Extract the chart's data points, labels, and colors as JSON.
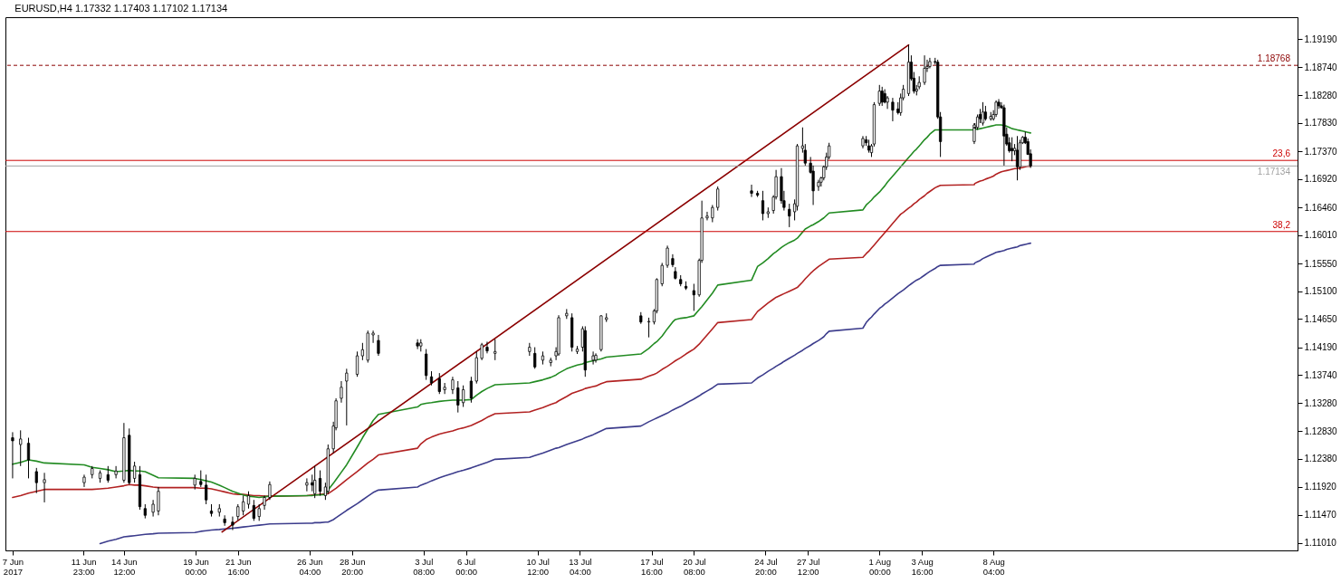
{
  "chart_data": {
    "type": "candlestick",
    "title": "EURUSD,H4  1.17332 1.17403 1.17102 1.17134",
    "xlim": [
      "2017-06-07T08:00",
      "2017-08-27T00:00"
    ],
    "ylim": [
      1.1089,
      1.1955
    ],
    "xticks": [
      {
        "value": "2017-06-07T12:00",
        "label": "7 Jun 2017"
      },
      {
        "value": "2017-06-11T23:00",
        "label": "11 Jun 23:00"
      },
      {
        "value": "2017-06-14T12:00",
        "label": "14 Jun 12:00"
      },
      {
        "value": "2017-06-19T00:00",
        "label": "19 Jun 00:00"
      },
      {
        "value": "2017-06-21T16:00",
        "label": "21 Jun 16:00"
      },
      {
        "value": "2017-06-26T04:00",
        "label": "26 Jun 04:00"
      },
      {
        "value": "2017-06-28T20:00",
        "label": "28 Jun 20:00"
      },
      {
        "value": "2017-07-03T08:00",
        "label": "3 Jul 08:00"
      },
      {
        "value": "2017-07-06T00:00",
        "label": "6 Jul 00:00"
      },
      {
        "value": "2017-07-10T12:00",
        "label": "10 Jul 12:00"
      },
      {
        "value": "2017-07-13T04:00",
        "label": "13 Jul 04:00"
      },
      {
        "value": "2017-07-17T16:00",
        "label": "17 Jul 16:00"
      },
      {
        "value": "2017-07-20T08:00",
        "label": "20 Jul 08:00"
      },
      {
        "value": "2017-07-24T20:00",
        "label": "24 Jul 20:00"
      },
      {
        "value": "2017-07-27T12:00",
        "label": "27 Jul 12:00"
      },
      {
        "value": "2017-08-01T00:00",
        "label": "1 Aug 00:00"
      },
      {
        "value": "2017-08-03T16:00",
        "label": "3 Aug 16:00"
      },
      {
        "value": "2017-08-08T04:00",
        "label": "8 Aug 04:00"
      }
    ],
    "yticks": [
      {
        "value": 1.1101,
        "label": "1.11010"
      },
      {
        "value": 1.1147,
        "label": "1.11470"
      },
      {
        "value": 1.1192,
        "label": "1.11920"
      },
      {
        "value": 1.1238,
        "label": "1.12380"
      },
      {
        "value": 1.1283,
        "label": "1.12830"
      },
      {
        "value": 1.1328,
        "label": "1.13280"
      },
      {
        "value": 1.1374,
        "label": "1.13740"
      },
      {
        "value": 1.1419,
        "label": "1.14190"
      },
      {
        "value": 1.1465,
        "label": "1.14650"
      },
      {
        "value": 1.151,
        "label": "1.15100"
      },
      {
        "value": 1.1555,
        "label": "1.15550"
      },
      {
        "value": 1.1601,
        "label": "1.16010"
      },
      {
        "value": 1.1646,
        "label": "1.16460"
      },
      {
        "value": 1.1692,
        "label": "1.16920"
      },
      {
        "value": 1.1737,
        "label": "1.17370"
      },
      {
        "value": 1.1783,
        "label": "1.17830"
      },
      {
        "value": 1.1828,
        "label": "1.18280"
      },
      {
        "value": 1.1874,
        "label": "1.18740"
      },
      {
        "value": 1.1919,
        "label": "1.19190"
      }
    ],
    "ref_lines": [
      {
        "axis": "y",
        "value": 1.18768,
        "label": "1.18768",
        "color": "#8b0000",
        "line_style": "dashed"
      },
      {
        "axis": "y",
        "value": 1.17224,
        "color": "#cc0000"
      },
      {
        "axis": "y",
        "value": 1.16069,
        "color": "#cc0000"
      },
      {
        "axis": "y",
        "value": 1.17134,
        "label": "1.17134",
        "color": "#a0a0a0"
      }
    ],
    "annotations": [
      {
        "text": "23,6",
        "y": 1.17224
      },
      {
        "text": "38,2",
        "y": 1.16069
      }
    ],
    "x": [
      "2017-06-07T12:00",
      "2017-06-08T00:00",
      "2017-06-08T12:00",
      "2017-06-09T00:00",
      "2017-06-09T12:00",
      "2017-06-12T00:00",
      "2017-06-12T12:00",
      "2017-06-13T00:00",
      "2017-06-13T12:00",
      "2017-06-14T00:00",
      "2017-06-14T12:00",
      "2017-06-14T20:00",
      "2017-06-15T04:00",
      "2017-06-15T12:00",
      "2017-06-15T20:00",
      "2017-06-16T08:00",
      "2017-06-16T16:00",
      "2017-06-18T23:00",
      "2017-06-19T08:00",
      "2017-06-19T16:00",
      "2017-06-20T00:00",
      "2017-06-20T12:00",
      "2017-06-20T20:00",
      "2017-06-21T08:00",
      "2017-06-21T16:00",
      "2017-06-22T00:00",
      "2017-06-22T08:00",
      "2017-06-22T16:00",
      "2017-06-23T00:00",
      "2017-06-23T08:00",
      "2017-06-23T16:00",
      "2017-06-26T00:00",
      "2017-06-26T08:00",
      "2017-06-26T12:00",
      "2017-06-26T20:00",
      "2017-06-27T04:00",
      "2017-06-27T08:00",
      "2017-06-27T16:00",
      "2017-06-27T20:00",
      "2017-06-28T04:00",
      "2017-06-28T12:00",
      "2017-06-29T04:00",
      "2017-06-29T12:00",
      "2017-06-29T20:00",
      "2017-06-30T04:00",
      "2017-06-30T12:00",
      "2017-07-02T23:00",
      "2017-07-03T04:00",
      "2017-07-03T12:00",
      "2017-07-03T20:00",
      "2017-07-04T08:00",
      "2017-07-04T16:00",
      "2017-07-05T04:00",
      "2017-07-05T12:00",
      "2017-07-05T20:00",
      "2017-07-06T08:00",
      "2017-07-06T16:00",
      "2017-07-07T00:00",
      "2017-07-07T08:00",
      "2017-07-07T20:00",
      "2017-07-10T00:00",
      "2017-07-10T08:00",
      "2017-07-10T20:00",
      "2017-07-11T08:00",
      "2017-07-11T16:00",
      "2017-07-11T20:00",
      "2017-07-12T08:00",
      "2017-07-12T16:00",
      "2017-07-13T00:00",
      "2017-07-13T08:00",
      "2017-07-13T12:00",
      "2017-07-14T00:00",
      "2017-07-14T04:00",
      "2017-07-14T12:00",
      "2017-07-14T20:00",
      "2017-07-17T00:00",
      "2017-07-17T12:00",
      "2017-07-17T20:00",
      "2017-07-18T00:00",
      "2017-07-18T08:00",
      "2017-07-18T16:00",
      "2017-07-19T00:00",
      "2017-07-19T04:00",
      "2017-07-19T12:00",
      "2017-07-19T20:00",
      "2017-07-20T08:00",
      "2017-07-20T16:00",
      "2017-07-20T20:00",
      "2017-07-21T04:00",
      "2017-07-21T12:00",
      "2017-07-21T20:00",
      "2017-07-23T23:00",
      "2017-07-24T08:00",
      "2017-07-24T16:00",
      "2017-07-25T00:00",
      "2017-07-25T08:00",
      "2017-07-25T12:00",
      "2017-07-25T20:00",
      "2017-07-26T00:00",
      "2017-07-26T08:00",
      "2017-07-26T16:00",
      "2017-07-26T20:00",
      "2017-07-27T04:00",
      "2017-07-27T08:00",
      "2017-07-27T16:00",
      "2017-07-27T20:00",
      "2017-07-28T04:00",
      "2017-07-28T08:00",
      "2017-07-28T12:00",
      "2017-07-28T16:00",
      "2017-07-28T20:00",
      "2017-07-30T23:00",
      "2017-07-31T04:00",
      "2017-07-31T08:00",
      "2017-07-31T12:00",
      "2017-07-31T16:00",
      "2017-08-01T00:00",
      "2017-08-01T04:00",
      "2017-08-01T08:00",
      "2017-08-01T12:00",
      "2017-08-01T20:00",
      "2017-08-02T04:00",
      "2017-08-02T08:00",
      "2017-08-02T12:00",
      "2017-08-02T20:00",
      "2017-08-03T00:00",
      "2017-08-03T04:00",
      "2017-08-03T08:00",
      "2017-08-03T12:00",
      "2017-08-03T20:00",
      "2017-08-04T00:00",
      "2017-08-04T04:00",
      "2017-08-04T12:00",
      "2017-08-04T16:00",
      "2017-08-04T20:00",
      "2017-08-06T23:00",
      "2017-08-07T00:00",
      "2017-08-07T04:00",
      "2017-08-07T08:00",
      "2017-08-07T12:00",
      "2017-08-07T16:00",
      "2017-08-08T00:00",
      "2017-08-08T04:00",
      "2017-08-08T08:00",
      "2017-08-08T12:00",
      "2017-08-08T16:00",
      "2017-08-08T20:00",
      "2017-08-09T00:00",
      "2017-08-09T04:00",
      "2017-08-09T08:00",
      "2017-08-09T12:00",
      "2017-08-09T16:00",
      "2017-08-09T20:00",
      "2017-08-10T00:00",
      "2017-08-10T04:00",
      "2017-08-10T08:00",
      "2017-08-10T12:00"
    ],
    "series": [
      {
        "type": "line",
        "color": "#3c3c8c",
        "values": [
          null,
          null,
          null,
          null,
          null,
          null,
          null,
          1.11,
          1.1104,
          1.1107,
          1.1111,
          1.1112,
          1.1113,
          1.1114,
          1.1115,
          1.1116,
          1.1117,
          1.1118,
          1.112,
          1.1121,
          1.1122,
          1.1123,
          1.1124,
          1.1125,
          1.1126,
          1.1127,
          1.1128,
          1.1129,
          1.113,
          1.1131,
          1.1132,
          1.1133,
          1.1133,
          1.1134,
          1.1134,
          1.1135,
          1.1135,
          1.1139,
          1.1142,
          1.1148,
          1.1154,
          1.1165,
          1.1171,
          1.1177,
          1.1183,
          1.1187,
          1.1192,
          1.1195,
          1.1198,
          1.1202,
          1.1207,
          1.121,
          1.1214,
          1.1217,
          1.1219,
          1.1223,
          1.1226,
          1.1229,
          1.1232,
          1.1237,
          1.124,
          1.1243,
          1.1247,
          1.1252,
          1.1255,
          1.1256,
          1.1261,
          1.1264,
          1.1267,
          1.127,
          1.1272,
          1.1277,
          1.1279,
          1.1283,
          1.1287,
          1.1291,
          1.1298,
          1.1302,
          1.1304,
          1.1308,
          1.1312,
          1.1317,
          1.1319,
          1.1323,
          1.1328,
          1.1335,
          1.134,
          1.1343,
          1.1348,
          1.1353,
          1.1359,
          1.1361,
          1.1369,
          1.1374,
          1.138,
          1.1385,
          1.1388,
          1.1393,
          1.1396,
          1.1401,
          1.1406,
          1.1409,
          1.1414,
          1.1417,
          1.1422,
          1.1425,
          1.143,
          1.1433,
          1.1436,
          1.1441,
          1.1445,
          1.145,
          1.1459,
          1.1464,
          1.1468,
          1.1473,
          1.1482,
          1.1485,
          1.1489,
          1.1492,
          1.1499,
          1.1506,
          1.1509,
          1.1512,
          1.1519,
          1.1522,
          1.1525,
          1.1528,
          1.153,
          1.1536,
          1.1539,
          1.1542,
          1.1547,
          1.155,
          1.1552,
          1.1554,
          1.1556,
          1.1558,
          1.156,
          1.1563,
          1.1565,
          1.1569,
          1.1571,
          1.1573,
          1.1574,
          1.1575,
          1.1576,
          1.1578,
          1.1579,
          1.158,
          1.1581,
          1.1582,
          1.1584,
          1.1585,
          1.1586,
          1.1587,
          1.1588
        ]
      },
      {
        "type": "line",
        "color": "#b22222",
        "values": [
          1.1175,
          1.1178,
          1.1182,
          1.1185,
          1.1188,
          1.1188,
          1.1188,
          1.1189,
          1.119,
          1.1192,
          1.1194,
          1.1196,
          1.1195,
          1.1195,
          1.1194,
          1.1192,
          1.1191,
          1.1191,
          1.119,
          1.119,
          1.1189,
          1.1186,
          1.1184,
          1.1181,
          1.118,
          1.118,
          1.1179,
          1.1178,
          1.1178,
          1.1177,
          1.1177,
          1.1178,
          1.1179,
          1.1179,
          1.118,
          1.1181,
          1.1181,
          1.1187,
          1.119,
          1.1197,
          1.1204,
          1.1217,
          1.1224,
          1.1231,
          1.1237,
          1.1244,
          1.1255,
          1.1262,
          1.1269,
          1.1273,
          1.1278,
          1.128,
          1.1283,
          1.1286,
          1.1288,
          1.1292,
          1.1296,
          1.13,
          1.1305,
          1.1311,
          1.1314,
          1.1317,
          1.1321,
          1.1326,
          1.1329,
          1.1332,
          1.1339,
          1.1344,
          1.1347,
          1.135,
          1.1352,
          1.1355,
          1.1356,
          1.136,
          1.1363,
          1.1367,
          1.1372,
          1.1375,
          1.1377,
          1.1383,
          1.1388,
          1.1394,
          1.1397,
          1.1402,
          1.1408,
          1.1416,
          1.1424,
          1.1429,
          1.1439,
          1.1449,
          1.1459,
          1.1464,
          1.1477,
          1.1484,
          1.1491,
          1.1497,
          1.15,
          1.1504,
          1.1506,
          1.151,
          1.1514,
          1.1516,
          1.1525,
          1.153,
          1.1539,
          1.1543,
          1.155,
          1.1553,
          1.1556,
          1.1559,
          1.1562,
          1.1565,
          1.1571,
          1.1575,
          1.158,
          1.1585,
          1.1595,
          1.16,
          1.1605,
          1.161,
          1.162,
          1.163,
          1.1635,
          1.1638,
          1.1645,
          1.1648,
          1.1652,
          1.1655,
          1.1659,
          1.1665,
          1.1669,
          1.1672,
          1.1678,
          1.168,
          1.1682,
          1.1683,
          1.1685,
          1.1687,
          1.1689,
          1.169,
          1.1692,
          1.1695,
          1.1697,
          1.17,
          1.1702,
          1.1704,
          1.1705,
          1.1706,
          1.1707,
          1.1708,
          1.1709,
          1.1709,
          1.171,
          1.1711,
          1.1712,
          1.1713,
          1.1713
        ]
      },
      {
        "type": "line",
        "color": "#228b22",
        "values": [
          1.1229,
          1.1232,
          1.1236,
          1.1234,
          1.1231,
          1.1228,
          1.1224,
          1.1222,
          1.122,
          1.1217,
          1.1218,
          1.1219,
          1.1218,
          1.1218,
          1.1217,
          1.1211,
          1.1207,
          1.1206,
          1.1204,
          1.1202,
          1.12,
          1.1195,
          1.1191,
          1.1185,
          1.1182,
          1.1179,
          1.1177,
          1.1176,
          1.1175,
          1.1176,
          1.1177,
          1.1178,
          1.1178,
          1.1179,
          1.1179,
          1.118,
          1.1187,
          1.1198,
          1.1204,
          1.1216,
          1.1228,
          1.1257,
          1.1272,
          1.1286,
          1.13,
          1.131,
          1.1322,
          1.1326,
          1.1328,
          1.1329,
          1.1331,
          1.1332,
          1.1333,
          1.1333,
          1.1333,
          1.1334,
          1.1341,
          1.1347,
          1.1352,
          1.1358,
          1.1361,
          1.1363,
          1.1366,
          1.137,
          1.1374,
          1.1377,
          1.1384,
          1.1387,
          1.139,
          1.1392,
          1.1394,
          1.1397,
          1.1398,
          1.14,
          1.1403,
          1.1408,
          1.1417,
          1.1425,
          1.1428,
          1.1437,
          1.1449,
          1.146,
          1.1464,
          1.1466,
          1.1467,
          1.147,
          1.148,
          1.1485,
          1.1496,
          1.1507,
          1.152,
          1.1528,
          1.155,
          1.1556,
          1.1563,
          1.1571,
          1.1574,
          1.1581,
          1.1584,
          1.1589,
          1.1593,
          1.1596,
          1.1606,
          1.1611,
          1.1616,
          1.1618,
          1.1623,
          1.1626,
          1.1629,
          1.1633,
          1.1637,
          1.1642,
          1.165,
          1.1654,
          1.1658,
          1.1663,
          1.1671,
          1.1676,
          1.1681,
          1.1687,
          1.1697,
          1.1707,
          1.1712,
          1.1717,
          1.1727,
          1.1732,
          1.1737,
          1.1741,
          1.1746,
          1.1756,
          1.176,
          1.1765,
          1.1772,
          1.1772,
          1.1772,
          1.1772,
          1.1773,
          1.1773,
          1.1774,
          1.1775,
          1.1776,
          1.1778,
          1.1779,
          1.178,
          1.178,
          1.178,
          1.1779,
          1.1778,
          1.1776,
          1.1774,
          1.1773,
          1.1772,
          1.1771,
          1.177,
          1.1769,
          1.1768,
          1.1767
        ]
      },
      {
        "type": "line",
        "color": "#8b0000",
        "x": [
          "2017-06-20T16:00",
          "2017-08-02T20:00"
        ],
        "values": [
          1.1119,
          1.191
        ]
      },
      {
        "type": "candlestick",
        "color": "#000000",
        "ohlc": [
          [
            1.1272,
            1.1281,
            1.1206,
            1.1267
          ],
          [
            1.1261,
            1.1284,
            1.1226,
            1.127
          ],
          [
            1.1263,
            1.1272,
            1.1206,
            1.1236
          ],
          [
            1.1217,
            1.1223,
            1.1182,
            1.1199
          ],
          [
            1.1199,
            1.1215,
            1.1167,
            1.1204
          ],
          [
            1.1199,
            1.1212,
            1.1192,
            1.1208
          ],
          [
            1.1212,
            1.1226,
            1.1206,
            1.1222
          ],
          [
            1.1206,
            1.1219,
            1.1199,
            1.1215
          ],
          [
            1.1212,
            1.1226,
            1.1199,
            1.1203
          ],
          [
            1.1212,
            1.1226,
            1.1206,
            1.1218
          ],
          [
            1.1203,
            1.1296,
            1.1199,
            1.1272
          ],
          [
            1.1276,
            1.1287,
            1.1196,
            1.1199
          ],
          [
            1.1206,
            1.1233,
            1.1199,
            1.1226
          ],
          [
            1.1212,
            1.1226,
            1.1155,
            1.116
          ],
          [
            1.1157,
            1.1164,
            1.1141,
            1.1146
          ],
          [
            1.1151,
            1.1171,
            1.1144,
            1.1164
          ],
          [
            1.1153,
            1.1192,
            1.1146,
            1.1185
          ],
          [
            1.1195,
            1.1212,
            1.1188,
            1.1206
          ],
          [
            1.1201,
            1.1219,
            1.1192,
            1.1196
          ],
          [
            1.1195,
            1.1212,
            1.1164,
            1.1171
          ],
          [
            1.1153,
            1.1164,
            1.1144,
            1.1149
          ],
          [
            1.1151,
            1.1164,
            1.1144,
            1.1157
          ],
          [
            1.114,
            1.1146,
            1.1129,
            1.1134
          ],
          [
            1.1135,
            1.1144,
            1.1122,
            1.113
          ],
          [
            1.1144,
            1.1164,
            1.1138,
            1.116
          ],
          [
            1.1153,
            1.1178,
            1.1146,
            1.1168
          ],
          [
            1.1164,
            1.1185,
            1.1157,
            1.1178
          ],
          [
            1.1162,
            1.1171,
            1.1137,
            1.1141
          ],
          [
            1.1144,
            1.1164,
            1.1137,
            1.1157
          ],
          [
            1.1162,
            1.1178,
            1.1155,
            1.1175
          ],
          [
            1.1175,
            1.1201,
            1.1171,
            1.1196
          ],
          [
            1.1195,
            1.1206,
            1.1185,
            1.1199
          ],
          [
            1.1199,
            1.1212,
            1.1185,
            1.1195
          ],
          [
            1.1181,
            1.1226,
            1.1174,
            1.1203
          ],
          [
            1.1206,
            1.1219,
            1.1178,
            1.1185
          ],
          [
            1.1178,
            1.1199,
            1.1171,
            1.1192
          ],
          [
            1.1185,
            1.1261,
            1.1181,
            1.1254
          ],
          [
            1.1254,
            1.1298,
            1.1247,
            1.1291
          ],
          [
            1.1288,
            1.1336,
            1.1284,
            1.1332
          ],
          [
            1.1336,
            1.1364,
            1.1329,
            1.1354
          ],
          [
            1.1364,
            1.1384,
            1.1292,
            1.1377
          ],
          [
            1.1375,
            1.1412,
            1.1371,
            1.1405
          ],
          [
            1.1405,
            1.1426,
            1.1398,
            1.1415
          ],
          [
            1.1398,
            1.1446,
            1.1394,
            1.1442
          ],
          [
            1.1439,
            1.1446,
            1.1426,
            1.1442
          ],
          [
            1.143,
            1.1439,
            1.1405,
            1.1409
          ],
          [
            1.1426,
            1.1432,
            1.1416,
            1.1421
          ],
          [
            1.1421,
            1.1432,
            1.1412,
            1.1426
          ],
          [
            1.1408,
            1.1416,
            1.1366,
            1.1373
          ],
          [
            1.1371,
            1.138,
            1.1357,
            1.1361
          ],
          [
            1.1368,
            1.1377,
            1.1343,
            1.1347
          ],
          [
            1.135,
            1.1361,
            1.1343,
            1.1354
          ],
          [
            1.135,
            1.1371,
            1.1343,
            1.1366
          ],
          [
            1.1353,
            1.1364,
            1.1313,
            1.1325
          ],
          [
            1.1329,
            1.1357,
            1.1322,
            1.135
          ],
          [
            1.1364,
            1.1371,
            1.1329,
            1.1336
          ],
          [
            1.1364,
            1.1412,
            1.136,
            1.1402
          ],
          [
            1.1401,
            1.1426,
            1.1398,
            1.1423
          ],
          [
            1.1419,
            1.1428,
            1.1409,
            1.1413
          ],
          [
            1.1409,
            1.1432,
            1.1398,
            1.1412
          ],
          [
            1.1412,
            1.1426,
            1.1405,
            1.1419
          ],
          [
            1.1409,
            1.1419,
            1.1384,
            1.1387
          ],
          [
            1.1398,
            1.1412,
            1.1391,
            1.1405
          ],
          [
            1.1394,
            1.1402,
            1.1388,
            1.1398
          ],
          [
            1.1405,
            1.1419,
            1.1398,
            1.1412
          ],
          [
            1.1408,
            1.1471,
            1.1405,
            1.1467
          ],
          [
            1.147,
            1.1481,
            1.1465,
            1.1474
          ],
          [
            1.1467,
            1.1474,
            1.1412,
            1.1419
          ],
          [
            1.1412,
            1.1421,
            1.1408,
            1.1416
          ],
          [
            1.1419,
            1.1453,
            1.1412,
            1.1449
          ],
          [
            1.1446,
            1.1453,
            1.1371,
            1.1382
          ],
          [
            1.1398,
            1.1412,
            1.1391,
            1.1405
          ],
          [
            1.1398,
            1.1409,
            1.1394,
            1.1406
          ],
          [
            1.1415,
            1.1471,
            1.1412,
            1.147
          ],
          [
            1.1464,
            1.1474,
            1.146,
            1.1467
          ],
          [
            1.147,
            1.1476,
            1.1457,
            1.146
          ],
          [
            1.146,
            1.1467,
            1.1435,
            1.1461
          ],
          [
            1.146,
            1.1481,
            1.1456,
            1.1478
          ],
          [
            1.1478,
            1.1531,
            1.1474,
            1.1529
          ],
          [
            1.1522,
            1.1556,
            1.1518,
            1.1552
          ],
          [
            1.1552,
            1.1584,
            1.1548,
            1.158
          ],
          [
            1.1563,
            1.157,
            1.1549,
            1.1553
          ],
          [
            1.1542,
            1.1549,
            1.1529,
            1.1531
          ],
          [
            1.1529,
            1.1536,
            1.1518,
            1.1522
          ],
          [
            1.1518,
            1.1526,
            1.1512,
            1.1515
          ],
          [
            1.1511,
            1.1522,
            1.1478,
            1.1504
          ],
          [
            1.1504,
            1.1563,
            1.1501,
            1.156
          ],
          [
            1.156,
            1.1657,
            1.1556,
            1.1629
          ],
          [
            1.1629,
            1.1639,
            1.1625,
            1.1632
          ],
          [
            1.1629,
            1.165,
            1.1622,
            1.1646
          ],
          [
            1.1646,
            1.168,
            1.1641,
            1.1676
          ],
          [
            1.1673,
            1.1683,
            1.1663,
            1.1669
          ],
          [
            1.1669,
            1.1673,
            1.1663,
            1.1666
          ],
          [
            1.1657,
            1.1673,
            1.1625,
            1.1636
          ],
          [
            1.1636,
            1.1646,
            1.1629,
            1.1639
          ],
          [
            1.1641,
            1.1666,
            1.1636,
            1.1663
          ],
          [
            1.1663,
            1.1707,
            1.1659,
            1.1696
          ],
          [
            1.1696,
            1.171,
            1.1652,
            1.1657
          ],
          [
            1.1657,
            1.1673,
            1.1641,
            1.1646
          ],
          [
            1.1643,
            1.1652,
            1.1614,
            1.1632
          ],
          [
            1.1639,
            1.1659,
            1.1625,
            1.1652
          ],
          [
            1.1648,
            1.1749,
            1.1641,
            1.1746
          ],
          [
            1.1742,
            1.1776,
            1.1735,
            1.1746
          ],
          [
            1.1739,
            1.1749,
            1.1714,
            1.1718
          ],
          [
            1.1718,
            1.1728,
            1.1701,
            1.1703
          ],
          [
            1.1705,
            1.1714,
            1.165,
            1.1673
          ],
          [
            1.168,
            1.1691,
            1.1673,
            1.1687
          ],
          [
            1.1687,
            1.1696,
            1.168,
            1.1694
          ],
          [
            1.1694,
            1.1714,
            1.169,
            1.1712
          ],
          [
            1.1712,
            1.1735,
            1.1707,
            1.1728
          ],
          [
            1.1728,
            1.1751,
            1.1724,
            1.1746
          ],
          [
            1.1746,
            1.1762,
            1.1742,
            1.1758
          ],
          [
            1.1756,
            1.1762,
            1.1746,
            1.1751
          ],
          [
            1.1746,
            1.1756,
            1.1735,
            1.1739
          ],
          [
            1.1735,
            1.1749,
            1.1728,
            1.1746
          ],
          [
            1.1749,
            1.1817,
            1.1745,
            1.1813
          ],
          [
            1.1815,
            1.1845,
            1.1811,
            1.1835
          ],
          [
            1.1835,
            1.1842,
            1.1811,
            1.1817
          ],
          [
            1.1831,
            1.1838,
            1.1815,
            1.1817
          ],
          [
            1.1817,
            1.1827,
            1.1806,
            1.1824
          ],
          [
            1.1817,
            1.1824,
            1.1786,
            1.1804
          ],
          [
            1.1806,
            1.1817,
            1.1797,
            1.18
          ],
          [
            1.18,
            1.1831,
            1.1795,
            1.1824
          ],
          [
            1.1824,
            1.1845,
            1.182,
            1.1838
          ],
          [
            1.1831,
            1.191,
            1.1827,
            1.1882
          ],
          [
            1.1882,
            1.1893,
            1.1852,
            1.1855
          ],
          [
            1.1856,
            1.1866,
            1.1831,
            1.1835
          ],
          [
            1.1835,
            1.1845,
            1.1828,
            1.1838
          ],
          [
            1.1842,
            1.1859,
            1.1838,
            1.1849
          ],
          [
            1.1849,
            1.1893,
            1.1845,
            1.1872
          ],
          [
            1.1872,
            1.1886,
            1.1866,
            1.1875
          ],
          [
            1.1875,
            1.1889,
            1.1872,
            1.1883
          ],
          [
            1.1883,
            1.1889,
            1.1878,
            1.1882
          ],
          [
            1.1882,
            1.1886,
            1.179,
            1.1793
          ],
          [
            1.1793,
            1.1801,
            1.1728,
            1.1753
          ],
          [
            1.1753,
            1.1783,
            1.1749,
            1.178
          ],
          [
            1.1776,
            1.1783,
            1.1772,
            1.1775
          ],
          [
            1.1776,
            1.1797,
            1.1772,
            1.1793
          ],
          [
            1.1797,
            1.1806,
            1.1783,
            1.179
          ],
          [
            1.1783,
            1.1817,
            1.1779,
            1.1801
          ],
          [
            1.1801,
            1.1811,
            1.1787,
            1.179
          ],
          [
            1.179,
            1.1801,
            1.1787,
            1.1794
          ],
          [
            1.179,
            1.1804,
            1.1787,
            1.1797
          ],
          [
            1.1797,
            1.182,
            1.1793,
            1.1817
          ],
          [
            1.1817,
            1.1822,
            1.1806,
            1.1811
          ],
          [
            1.1811,
            1.1817,
            1.1806,
            1.1808
          ],
          [
            1.1808,
            1.1813,
            1.1714,
            1.1762
          ],
          [
            1.1765,
            1.1776,
            1.1746,
            1.1749
          ],
          [
            1.1751,
            1.176,
            1.1735,
            1.1738
          ],
          [
            1.1742,
            1.176,
            1.1721,
            1.1738
          ],
          [
            1.1738,
            1.1749,
            1.1731,
            1.1742
          ],
          [
            1.1739,
            1.1762,
            1.169,
            1.1712
          ],
          [
            1.1712,
            1.1756,
            1.1707,
            1.1751
          ],
          [
            1.1751,
            1.1762,
            1.1749,
            1.176
          ],
          [
            1.176,
            1.1769,
            1.1749,
            1.1751
          ],
          [
            1.1753,
            1.1758,
            1.1732,
            1.1732
          ],
          [
            1.17332,
            1.17403,
            1.17102,
            1.17134
          ]
        ]
      }
    ]
  }
}
